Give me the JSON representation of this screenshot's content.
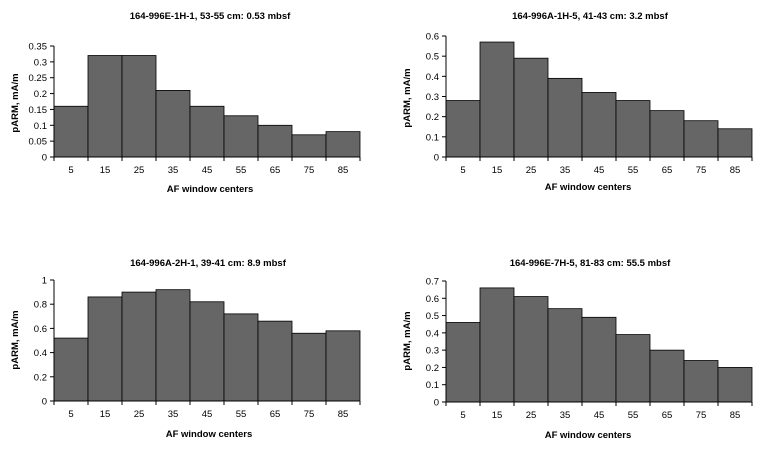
{
  "chart_data": [
    {
      "type": "bar",
      "title": "164-996E-1H-1, 53-55 cm: 0.53 mbsf",
      "xlabel": "AF window centers",
      "ylabel": "pARM, mA/m",
      "categories": [
        "5",
        "15",
        "25",
        "35",
        "45",
        "55",
        "65",
        "75",
        "85"
      ],
      "values": [
        0.16,
        0.32,
        0.32,
        0.21,
        0.16,
        0.13,
        0.1,
        0.07,
        0.08
      ],
      "ylim": [
        0,
        0.35
      ],
      "yticks": [
        "0",
        "0.05",
        "0.1",
        "0.15",
        "0.2",
        "0.25",
        "0.3",
        "0.35"
      ],
      "grid": false,
      "bar_color": "#666666"
    },
    {
      "type": "bar",
      "title": "164-996A-1H-5, 41-43 cm: 3.2 mbsf",
      "xlabel": "AF window centers",
      "ylabel": "pARM, mA/m",
      "categories": [
        "5",
        "15",
        "25",
        "35",
        "45",
        "55",
        "65",
        "75",
        "85"
      ],
      "values": [
        0.28,
        0.57,
        0.49,
        0.39,
        0.32,
        0.28,
        0.23,
        0.18,
        0.14
      ],
      "ylim": [
        0,
        0.6
      ],
      "yticks": [
        "0",
        "0.1",
        "0.2",
        "0.3",
        "0.4",
        "0.5",
        "0.6"
      ],
      "grid": false,
      "bar_color": "#666666"
    },
    {
      "type": "bar",
      "title": "164-996A-2H-1, 39-41 cm: 8.9 mbsf",
      "xlabel": "AF window centers",
      "ylabel": "pARM, mA/m",
      "categories": [
        "5",
        "15",
        "25",
        "35",
        "45",
        "55",
        "65",
        "75",
        "85"
      ],
      "values": [
        0.52,
        0.86,
        0.9,
        0.92,
        0.82,
        0.72,
        0.66,
        0.56,
        0.58
      ],
      "ylim": [
        0,
        1
      ],
      "yticks": [
        "0",
        "0.2",
        "0.4",
        "0.6",
        "0.8",
        "1"
      ],
      "grid": false,
      "bar_color": "#666666"
    },
    {
      "type": "bar",
      "title": "164-996E-7H-5, 81-83 cm: 55.5 mbsf",
      "xlabel": "AF window centers",
      "ylabel": "pARM, mA/m",
      "categories": [
        "5",
        "15",
        "25",
        "35",
        "45",
        "55",
        "65",
        "75",
        "85"
      ],
      "values": [
        0.46,
        0.66,
        0.61,
        0.54,
        0.49,
        0.39,
        0.3,
        0.24,
        0.2
      ],
      "ylim": [
        0,
        0.7
      ],
      "yticks": [
        "0",
        "0.1",
        "0.2",
        "0.3",
        "0.4",
        "0.5",
        "0.6",
        "0.7"
      ],
      "grid": false,
      "bar_color": "#666666"
    }
  ]
}
